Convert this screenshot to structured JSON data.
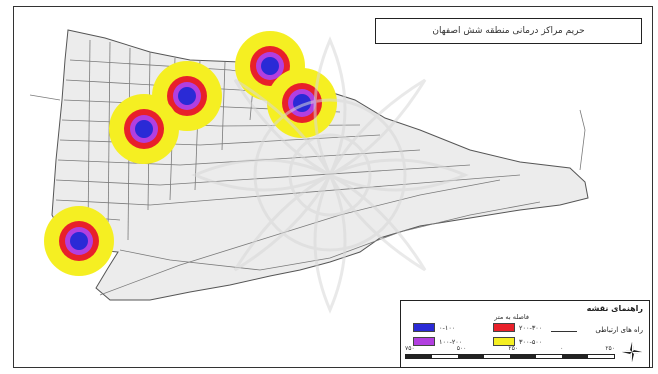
{
  "map_title": "حریم مراکز درمانی منطقه شش اصفهان",
  "legend": {
    "title": "راهنمای نقشه",
    "subtitle": "فاصله به متر",
    "road_label": "راه های ارتباطی",
    "classes": [
      {
        "label": "۰-۱۰۰",
        "color": "#2a2ad6"
      },
      {
        "label": "۲۰۰-۳۰۰",
        "color": "#e8202a"
      },
      {
        "label": "۱۰۰-۲۰۰",
        "color": "#b23fe0"
      },
      {
        "label": "۳۰۰-۵۰۰",
        "color": "#f5ef22"
      }
    ]
  },
  "scale_labels": [
    "۷۵۰",
    "۵۰۰",
    "۲۵۰",
    "۰",
    "۲۵۰"
  ],
  "colors": {
    "road": "#777777",
    "urban_fill": "#e6e6e6",
    "buffer_outer": "#f5ef22",
    "buffer_red": "#e8202a",
    "buffer_purple": "#b23fe0",
    "buffer_blue": "#2a2ad6"
  },
  "icons": {
    "north_arrow": "compass-rose-icon"
  }
}
